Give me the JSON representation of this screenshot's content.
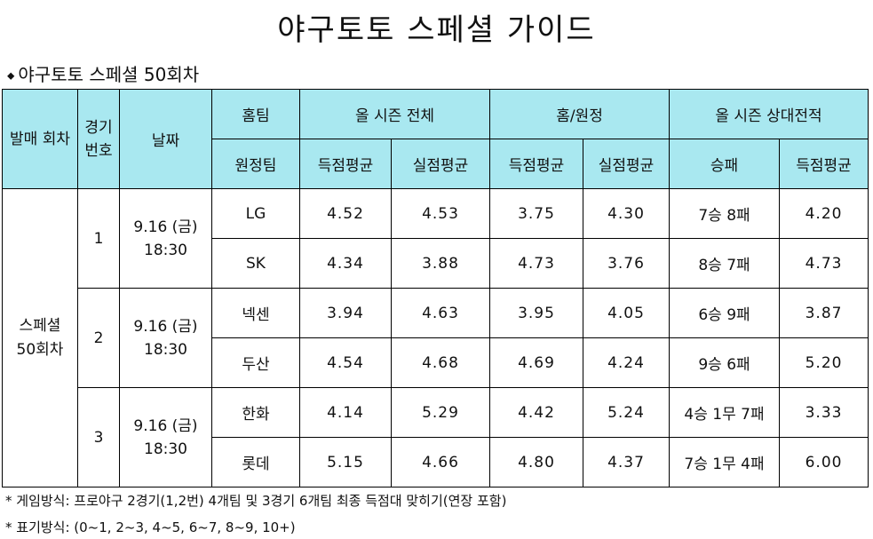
{
  "title": "야구토토 스페셜 가이드",
  "subtitle": "야구토토 스페셜 50회차",
  "headers": {
    "round": "발매 회차",
    "game_no": "경기 번호",
    "date": "날짜",
    "home_team": "홈팀",
    "away_team": "원정팀",
    "season_total": "올 시즌 전체",
    "home_away": "홈/원정",
    "head_to_head": "올 시즌 상대전적",
    "scored_avg": "득점평균",
    "allowed_avg": "실점평균",
    "win_loss": "승패"
  },
  "round_label": "스페셜 50회차",
  "games": [
    {
      "no": "1",
      "date": "9.16 (금) 18:30",
      "teams": [
        {
          "name": "LG",
          "season_scored": "4.52",
          "season_allowed": "4.53",
          "ha_scored": "3.75",
          "ha_allowed": "4.30",
          "h2h_record": "7승 8패",
          "h2h_scored": "4.20"
        },
        {
          "name": "SK",
          "season_scored": "4.34",
          "season_allowed": "3.88",
          "ha_scored": "4.73",
          "ha_allowed": "3.76",
          "h2h_record": "8승 7패",
          "h2h_scored": "4.73"
        }
      ]
    },
    {
      "no": "2",
      "date": "9.16 (금) 18:30",
      "teams": [
        {
          "name": "넥센",
          "season_scored": "3.94",
          "season_allowed": "4.63",
          "ha_scored": "3.95",
          "ha_allowed": "4.05",
          "h2h_record": "6승 9패",
          "h2h_scored": "3.87"
        },
        {
          "name": "두산",
          "season_scored": "4.54",
          "season_allowed": "4.68",
          "ha_scored": "4.69",
          "ha_allowed": "4.24",
          "h2h_record": "9승 6패",
          "h2h_scored": "5.20"
        }
      ]
    },
    {
      "no": "3",
      "date": "9.16 (금) 18:30",
      "teams": [
        {
          "name": "한화",
          "season_scored": "4.14",
          "season_allowed": "5.29",
          "ha_scored": "4.42",
          "ha_allowed": "5.24",
          "h2h_record": "4승 1무 7패",
          "h2h_scored": "3.33"
        },
        {
          "name": "롯데",
          "season_scored": "5.15",
          "season_allowed": "4.66",
          "ha_scored": "4.80",
          "ha_allowed": "4.37",
          "h2h_record": "7승 1무 4패",
          "h2h_scored": "6.00"
        }
      ]
    }
  ],
  "footnotes": [
    "* 게임방식: 프로야구 2경기(1,2번) 4개팀 및 3경기 6개팀 최종 득점대 맞히기(연장 포함)",
    "* 표기방식: (0~1, 2~3, 4~5, 6~7, 8~9, 10+)"
  ],
  "colors": {
    "header_bg": "#a9e8f0",
    "border": "#000000"
  }
}
